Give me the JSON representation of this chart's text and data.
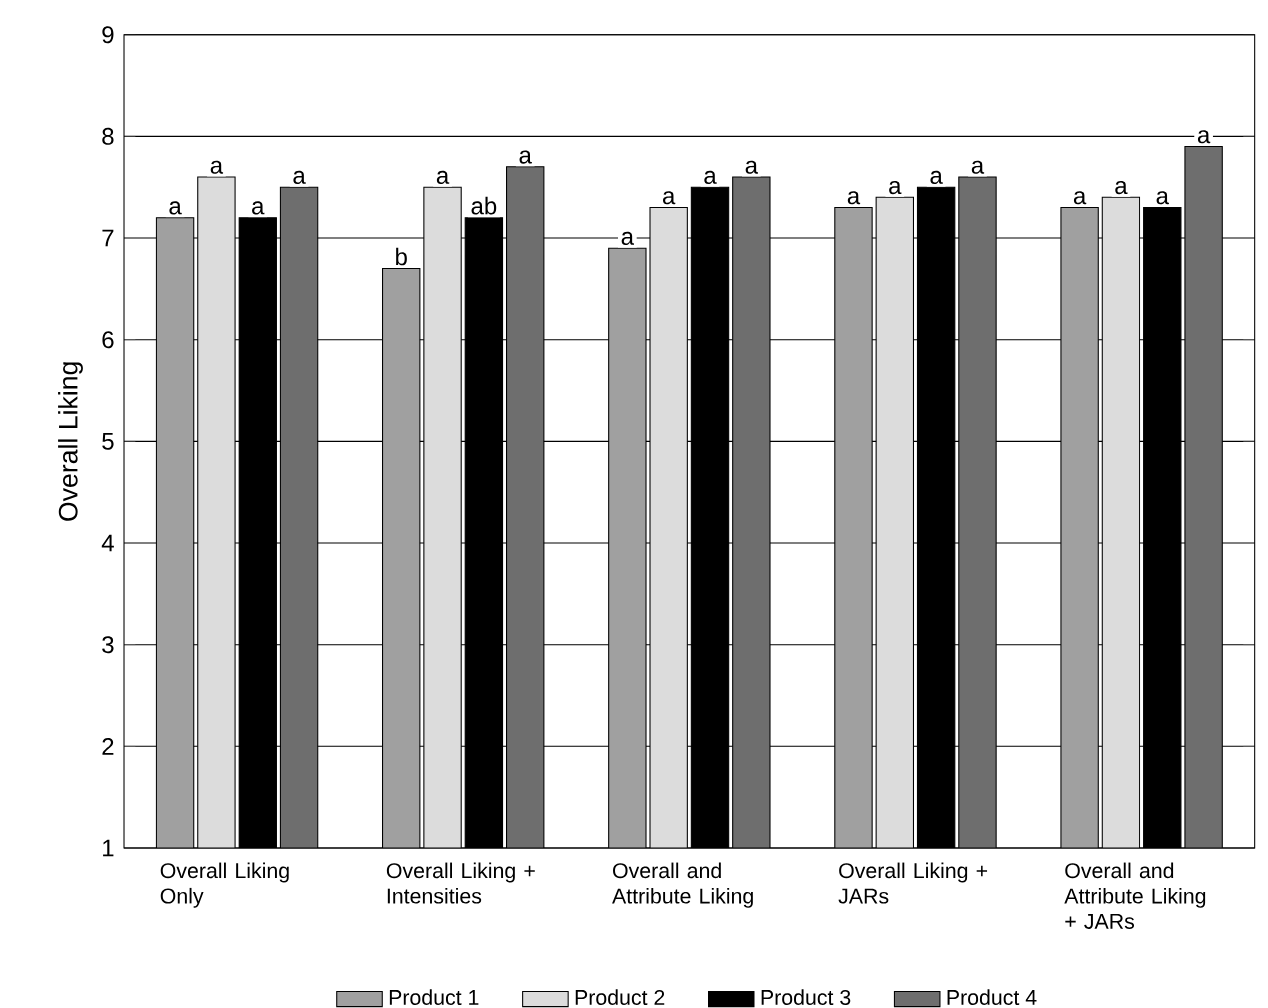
{
  "chart_data": {
    "type": "bar",
    "ylabel": "Overall Liking",
    "categories": [
      "Overall Liking Only",
      "Overall Liking + Intensities",
      "Overall and Attribute Liking",
      "Overall Liking + JARs",
      "Overall and Attribute Liking + JARs"
    ],
    "series": [
      {
        "name": "Product 1",
        "color": "#a0a0a0",
        "values": [
          7.2,
          6.7,
          6.9,
          7.3,
          7.3
        ],
        "value_labels": [
          "a",
          "b",
          "a",
          "a",
          "a"
        ]
      },
      {
        "name": "Product 2",
        "color": "#dcdcdc",
        "values": [
          7.6,
          7.5,
          7.3,
          7.4,
          7.4
        ],
        "value_labels": [
          "a",
          "a",
          "a",
          "a",
          "a"
        ]
      },
      {
        "name": "Product 3",
        "color": "#000000",
        "values": [
          7.2,
          7.2,
          7.5,
          7.5,
          7.3
        ],
        "value_labels": [
          "a",
          "ab",
          "a",
          "a",
          "a"
        ]
      },
      {
        "name": "Product 4",
        "color": "#6e6e6e",
        "values": [
          7.5,
          7.7,
          7.6,
          7.6,
          7.9
        ],
        "value_labels": [
          "a",
          "a",
          "a",
          "a",
          "a"
        ]
      }
    ],
    "ylim": [
      1,
      9
    ],
    "yticks": [
      1,
      2,
      3,
      4,
      5,
      6,
      7,
      8,
      9
    ],
    "grid": "y",
    "legend": "bottom"
  }
}
